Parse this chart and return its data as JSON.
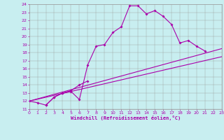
{
  "bg_color": "#c8eef0",
  "line_color": "#aa00aa",
  "xmin": 0,
  "xmax": 23,
  "ymin": 11,
  "ymax": 24,
  "xlabel": "Windchill (Refroidissement éolien,°C)",
  "curve1_x": [
    0,
    1,
    2,
    3,
    4,
    5,
    6,
    7,
    8,
    9,
    10,
    11,
    12,
    13,
    14,
    15,
    16,
    17,
    18,
    19,
    20,
    21
  ],
  "curve1_y": [
    12.0,
    11.8,
    11.5,
    12.5,
    13.0,
    13.2,
    12.2,
    16.5,
    18.8,
    19.0,
    20.5,
    21.2,
    23.8,
    23.8,
    22.8,
    23.2,
    22.5,
    21.5,
    19.2,
    19.5,
    18.8,
    18.2
  ],
  "curve2_x": [
    2,
    3,
    4,
    5,
    6,
    7
  ],
  "curve2_y": [
    11.5,
    12.5,
    13.0,
    13.3,
    14.0,
    14.5
  ],
  "line1_x": [
    0,
    23
  ],
  "line1_y": [
    12.0,
    18.5
  ],
  "line2_x": [
    0,
    23
  ],
  "line2_y": [
    12.0,
    17.5
  ]
}
